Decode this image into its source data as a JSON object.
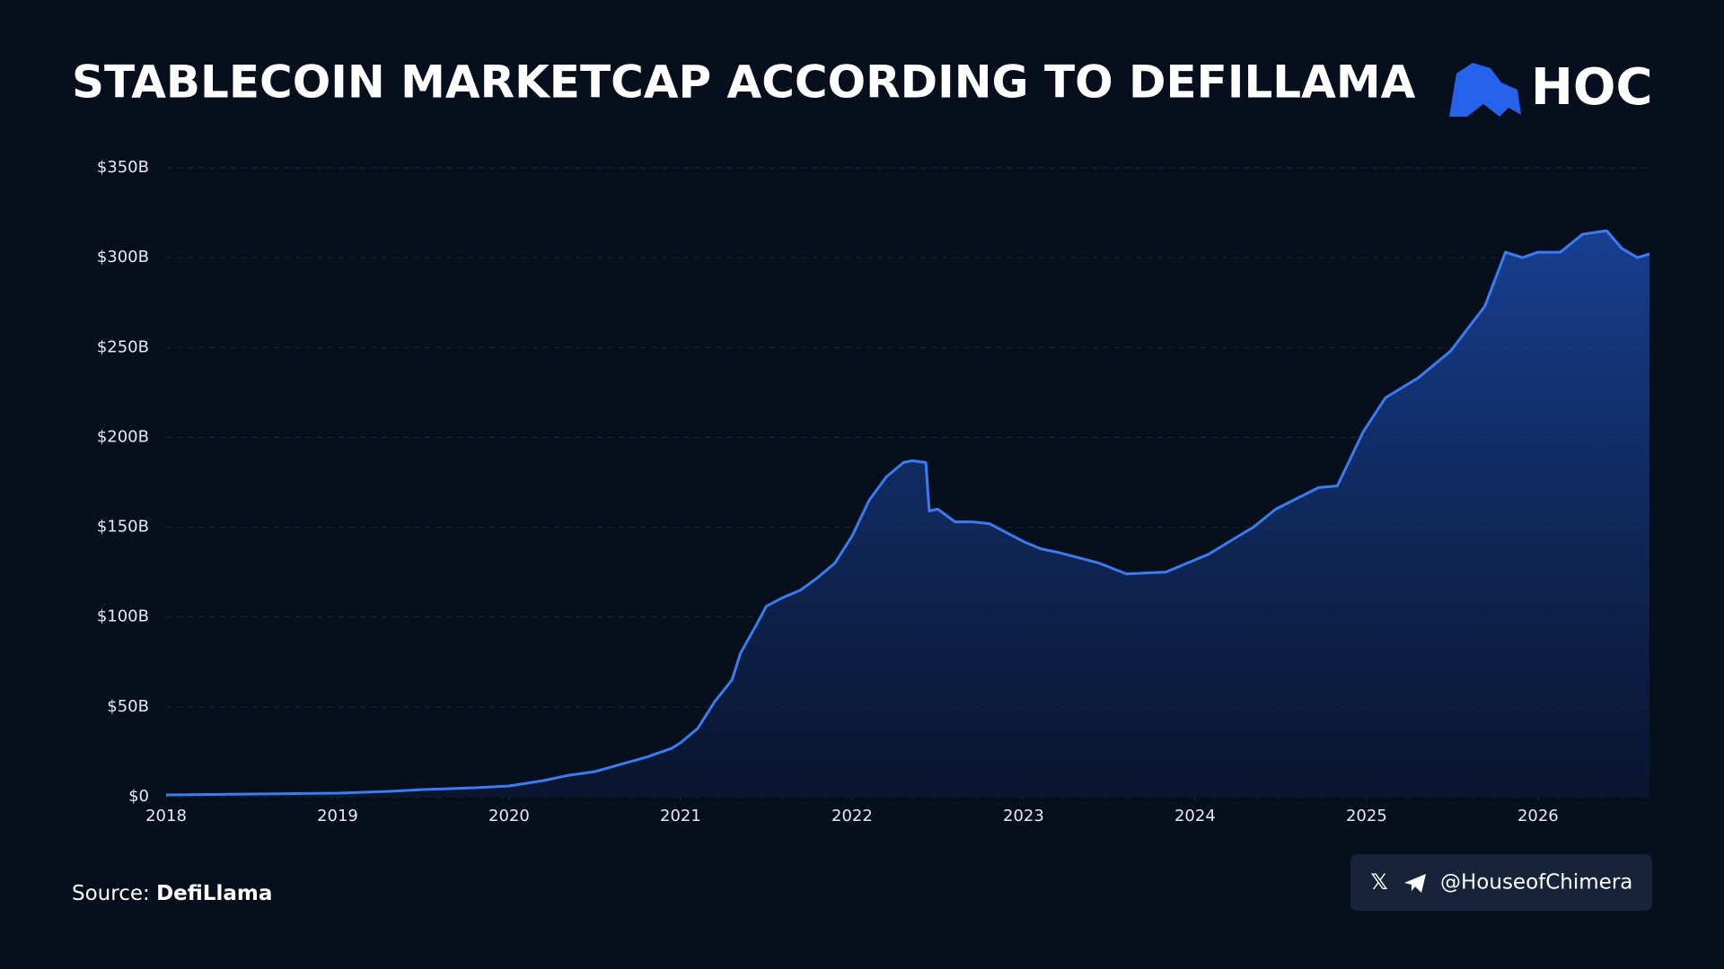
{
  "chart_data": {
    "type": "area",
    "title": "STABLECOIN MARKETCAP ACCORDING TO DEFILLAMA",
    "logo": "HOC",
    "source_label": "Source:",
    "source": "DefiLlama",
    "handle": "@HouseofChimera",
    "x": [
      2018.0,
      2018.5,
      2019.0,
      2019.3,
      2019.5,
      2019.8,
      2020.0,
      2020.2,
      2020.35,
      2020.5,
      2020.65,
      2020.8,
      2020.95,
      2021.0,
      2021.1,
      2021.2,
      2021.3,
      2021.35,
      2021.45,
      2021.5,
      2021.6,
      2021.7,
      2021.8,
      2021.9,
      2022.0,
      2022.1,
      2022.2,
      2022.3,
      2022.35,
      2022.43,
      2022.45,
      2022.5,
      2022.6,
      2022.7,
      2022.8,
      2022.9,
      2023.0,
      2023.1,
      2023.2,
      2023.44,
      2023.6,
      2023.83,
      2024.08,
      2024.2,
      2024.34,
      2024.47,
      2024.72,
      2024.83,
      2024.98,
      2025.11,
      2025.3,
      2025.49,
      2025.69,
      2025.81,
      2025.91,
      2026.0,
      2026.13,
      2026.26,
      2026.4,
      2026.49,
      2026.58,
      2026.65
    ],
    "series": [
      {
        "name": "Stablecoin marketcap",
        "color": "#3b7cf0",
        "values": [
          1,
          1.5,
          2,
          3,
          4,
          5,
          6,
          9,
          12,
          14,
          18,
          22,
          27,
          30,
          38,
          53,
          65,
          80,
          97,
          106,
          111,
          115,
          122,
          130,
          145,
          165,
          178,
          186,
          187,
          186,
          159,
          160,
          153,
          153,
          152,
          147,
          142,
          138,
          136,
          130,
          124,
          125,
          135,
          142,
          150,
          160,
          172,
          173,
          203,
          222,
          233,
          248,
          273,
          303,
          300,
          303,
          303,
          313,
          315,
          305,
          300,
          302
        ]
      }
    ],
    "xlim": [
      2018,
      2026.65
    ],
    "xticks": [
      2018,
      2019,
      2020,
      2021,
      2022,
      2023,
      2024,
      2025,
      2026
    ],
    "ylim": [
      0,
      350
    ],
    "yticks": [
      {
        "value": 0,
        "label": "$0"
      },
      {
        "value": 50,
        "label": "$50B"
      },
      {
        "value": 100,
        "label": "$100B"
      },
      {
        "value": 150,
        "label": "$150B"
      },
      {
        "value": 200,
        "label": "$200B"
      },
      {
        "value": 250,
        "label": "$250B"
      },
      {
        "value": 300,
        "label": "$300B"
      },
      {
        "value": 350,
        "label": "$350B"
      }
    ],
    "grid": true
  }
}
